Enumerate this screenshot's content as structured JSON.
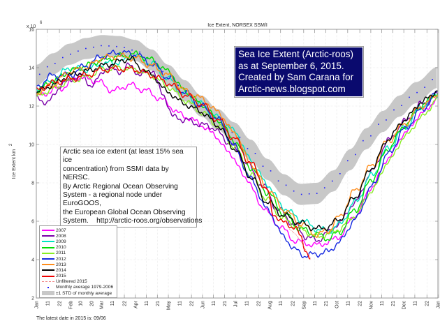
{
  "chart_data": {
    "type": "line",
    "title": "Ice Extent, NORSEX SSM/I",
    "ylabel": "Ice Extent km",
    "ylabel_superscript": "2",
    "y_multiplier": "x 10",
    "y_multiplier_exp": "6",
    "xlabel": "",
    "ylim": [
      2,
      16
    ],
    "xlim": [
      0,
      365
    ],
    "yticks": [
      2,
      4,
      6,
      8,
      10,
      12,
      14,
      16
    ],
    "grid": true,
    "legend_position": "bottom-left",
    "xticks": [
      {
        "day": 0,
        "label": "Jan"
      },
      {
        "day": 10,
        "label": "11"
      },
      {
        "day": 21,
        "label": "22"
      },
      {
        "day": 31,
        "label": "Feb"
      },
      {
        "day": 40,
        "label": "10"
      },
      {
        "day": 50,
        "label": "20"
      },
      {
        "day": 59,
        "label": "Mar"
      },
      {
        "day": 69,
        "label": "11"
      },
      {
        "day": 80,
        "label": "22"
      },
      {
        "day": 90,
        "label": "Apr"
      },
      {
        "day": 100,
        "label": "11"
      },
      {
        "day": 110,
        "label": "21"
      },
      {
        "day": 120,
        "label": "May"
      },
      {
        "day": 130,
        "label": "11"
      },
      {
        "day": 141,
        "label": "22"
      },
      {
        "day": 151,
        "label": "Jun"
      },
      {
        "day": 161,
        "label": "11"
      },
      {
        "day": 171,
        "label": "21"
      },
      {
        "day": 181,
        "label": "Jul"
      },
      {
        "day": 191,
        "label": "11"
      },
      {
        "day": 202,
        "label": "22"
      },
      {
        "day": 212,
        "label": "Aug"
      },
      {
        "day": 222,
        "label": "11"
      },
      {
        "day": 233,
        "label": "22"
      },
      {
        "day": 243,
        "label": "Sep"
      },
      {
        "day": 253,
        "label": "11"
      },
      {
        "day": 263,
        "label": "21"
      },
      {
        "day": 273,
        "label": "Oct"
      },
      {
        "day": 283,
        "label": "11"
      },
      {
        "day": 294,
        "label": "22"
      },
      {
        "day": 304,
        "label": "Nov"
      },
      {
        "day": 314,
        "label": "11"
      },
      {
        "day": 324,
        "label": "21"
      },
      {
        "day": 334,
        "label": "Dec"
      },
      {
        "day": 344,
        "label": "11"
      },
      {
        "day": 355,
        "label": "22"
      },
      {
        "day": 365,
        "label": "Jan"
      }
    ],
    "monthly_average": {
      "name": "Monthly average 1979-2006",
      "color": "#1a1aff",
      "x": [
        0,
        15,
        30,
        45,
        60,
        75,
        90,
        105,
        120,
        135,
        150,
        165,
        180,
        195,
        210,
        225,
        240,
        255,
        270,
        285,
        300,
        315,
        330,
        345,
        365
      ],
      "y": [
        13.6,
        14.2,
        14.7,
        15.0,
        15.15,
        15.1,
        14.9,
        14.4,
        13.6,
        12.8,
        12.0,
        11.3,
        10.6,
        9.7,
        8.7,
        7.9,
        7.4,
        7.45,
        8.1,
        9.2,
        10.3,
        11.2,
        12.0,
        12.7,
        13.5
      ]
    },
    "std_band": {
      "name": "±1 STD of monthly average",
      "color": "#c8c8c8",
      "half_width": 0.55
    },
    "series": [
      {
        "name": "2007",
        "color": "#ff00ff",
        "x": [
          0,
          20,
          40,
          55,
          70,
          85,
          100,
          115,
          130,
          145,
          160,
          175,
          190,
          205,
          220,
          235,
          245,
          255,
          265,
          275,
          290,
          305,
          320,
          335,
          350,
          365
        ],
        "y": [
          12.5,
          12.9,
          13.5,
          13.3,
          12.8,
          13.1,
          12.8,
          12.3,
          11.6,
          11.2,
          10.6,
          9.6,
          8.3,
          6.8,
          5.8,
          5.0,
          4.85,
          4.75,
          4.9,
          5.2,
          6.3,
          7.8,
          9.3,
          10.6,
          11.6,
          12.4
        ]
      },
      {
        "name": "2008",
        "color": "#7a00a8",
        "x": [
          0,
          10,
          25,
          40,
          50,
          65,
          75,
          85,
          95,
          105,
          115,
          125,
          135,
          145,
          160,
          175,
          190,
          205,
          220,
          235,
          245,
          255,
          265,
          275,
          290,
          305,
          320,
          335,
          350,
          365
        ],
        "y": [
          12.4,
          12.2,
          13.2,
          13.6,
          13.1,
          14.0,
          13.8,
          14.1,
          13.6,
          13.9,
          12.6,
          11.4,
          11.3,
          11.1,
          10.9,
          10.1,
          9.1,
          7.9,
          6.6,
          5.8,
          5.2,
          5.0,
          5.4,
          5.9,
          7.0,
          8.6,
          10.2,
          11.2,
          12.1,
          12.6
        ]
      },
      {
        "name": "2009",
        "color": "#00e5c0",
        "x": [
          0,
          15,
          30,
          45,
          60,
          75,
          90,
          105,
          120,
          135,
          150,
          165,
          180,
          195,
          210,
          225,
          240,
          255,
          265,
          275,
          290,
          305,
          320,
          335,
          350,
          365
        ],
        "y": [
          12.9,
          13.3,
          14.0,
          13.9,
          14.2,
          14.3,
          14.6,
          14.2,
          13.4,
          12.6,
          12.1,
          11.4,
          10.7,
          9.2,
          7.9,
          6.7,
          6.1,
          5.6,
          5.5,
          5.8,
          7.0,
          8.4,
          9.8,
          10.9,
          12.0,
          12.6
        ]
      },
      {
        "name": "2010",
        "color": "#00dd00",
        "x": [
          0,
          15,
          30,
          45,
          60,
          75,
          90,
          105,
          120,
          135,
          150,
          165,
          180,
          195,
          210,
          225,
          240,
          255,
          265,
          275,
          290,
          305,
          320,
          335,
          350,
          365
        ],
        "y": [
          12.8,
          13.3,
          13.8,
          14.1,
          14.4,
          14.6,
          14.7,
          14.4,
          13.8,
          12.8,
          12.1,
          11.3,
          10.2,
          8.8,
          7.5,
          6.4,
          5.6,
          5.3,
          5.1,
          5.4,
          6.6,
          8.2,
          9.8,
          11.0,
          12.0,
          12.7
        ]
      },
      {
        "name": "2011",
        "color": "#88ee22",
        "x": [
          0,
          15,
          30,
          45,
          60,
          75,
          90,
          105,
          120,
          135,
          150,
          165,
          180,
          195,
          210,
          225,
          240,
          255,
          265,
          275,
          290,
          305,
          320,
          335,
          350,
          365
        ],
        "y": [
          12.5,
          12.9,
          13.3,
          13.5,
          13.9,
          14.0,
          13.9,
          13.6,
          13.0,
          12.3,
          11.7,
          11.0,
          9.9,
          8.4,
          7.1,
          6.1,
          5.6,
          5.2,
          5.3,
          5.6,
          6.3,
          7.6,
          9.1,
          10.4,
          11.4,
          12.4
        ]
      },
      {
        "name": "2012",
        "color": "#1428e0",
        "x": [
          0,
          15,
          30,
          45,
          60,
          75,
          90,
          105,
          120,
          135,
          150,
          165,
          180,
          195,
          210,
          225,
          235,
          245,
          255,
          265,
          275,
          290,
          305,
          320,
          335,
          350,
          365
        ],
        "y": [
          13.0,
          13.6,
          13.6,
          14.1,
          14.6,
          14.8,
          14.7,
          14.2,
          13.5,
          12.7,
          12.0,
          11.3,
          9.9,
          8.2,
          6.6,
          5.2,
          4.5,
          4.2,
          4.3,
          4.4,
          4.9,
          6.1,
          7.8,
          9.5,
          10.8,
          11.8,
          12.7
        ]
      },
      {
        "name": "2013",
        "color": "#ff8c1a",
        "x": [
          0,
          15,
          30,
          45,
          60,
          75,
          90,
          105,
          120,
          135,
          150,
          165,
          180,
          195,
          210,
          225,
          240,
          255,
          265,
          275,
          290,
          305,
          320,
          335,
          350,
          365
        ],
        "y": [
          12.7,
          13.1,
          13.8,
          14.0,
          14.5,
          14.6,
          14.5,
          14.1,
          13.6,
          12.8,
          12.4,
          11.7,
          10.6,
          9.0,
          7.7,
          6.6,
          5.9,
          5.3,
          5.5,
          6.2,
          7.6,
          8.9,
          10.2,
          11.1,
          12.0,
          12.6
        ]
      },
      {
        "name": "2014",
        "color": "#000000",
        "x": [
          0,
          15,
          30,
          45,
          60,
          75,
          85,
          95,
          105,
          120,
          135,
          150,
          165,
          180,
          195,
          210,
          225,
          240,
          255,
          265,
          275,
          290,
          305,
          320,
          335,
          350,
          365
        ],
        "y": [
          12.7,
          13.1,
          13.6,
          13.8,
          14.1,
          14.3,
          14.5,
          14.0,
          13.6,
          12.7,
          12.1,
          11.7,
          11.0,
          9.8,
          8.3,
          7.0,
          6.3,
          5.9,
          5.6,
          5.7,
          6.1,
          7.3,
          8.8,
          10.3,
          11.3,
          12.2,
          12.8
        ]
      },
      {
        "name": "2015",
        "color": "#ee0000",
        "x": [
          0,
          15,
          30,
          45,
          60,
          75,
          90,
          105,
          120,
          135,
          150,
          165,
          180,
          195,
          210,
          215,
          225,
          235,
          240,
          244,
          249
        ],
        "y": [
          12.8,
          13.2,
          13.4,
          13.6,
          13.9,
          13.95,
          13.9,
          13.6,
          13.2,
          12.6,
          12.1,
          11.3,
          10.3,
          9.0,
          7.6,
          6.4,
          5.9,
          5.7,
          5.2,
          4.6,
          4.1
        ]
      }
    ],
    "unfiltered_2015": {
      "name": "Unfiltered 2015",
      "color": "#f08080",
      "x": [
        230,
        236,
        241,
        245,
        249
      ],
      "y": [
        5.6,
        5.3,
        4.9,
        4.5,
        4.1
      ]
    }
  },
  "annotation": {
    "lines": [
      "Sea Ice Extent (Arctic-roos)",
      "as at September 6, 2015.",
      "Created by Sam Carana for",
      "Arctic-news.blogspot.com"
    ]
  },
  "description": {
    "lines": [
      "Arctic sea ice extent (at least 15% sea ice",
      "concentration) from SSMI data by NERSC.",
      "By Arctic Regional Ocean Observing",
      "System - a regional node under EuroGOOS,",
      "the European Global Ocean Observing",
      "System.    http://arctic-roos.org/observations"
    ]
  },
  "legend": {
    "items": [
      {
        "label": "2007",
        "kind": "line",
        "color": "#ff00ff"
      },
      {
        "label": "2008",
        "kind": "line",
        "color": "#7a00a8"
      },
      {
        "label": "2009",
        "kind": "line",
        "color": "#00e5c0"
      },
      {
        "label": "2010",
        "kind": "line",
        "color": "#00dd00"
      },
      {
        "label": "2011",
        "kind": "line",
        "color": "#88ee22"
      },
      {
        "label": "2012",
        "kind": "line",
        "color": "#1428e0"
      },
      {
        "label": "2013",
        "kind": "line",
        "color": "#ff8c1a"
      },
      {
        "label": "2014",
        "kind": "line",
        "color": "#000000"
      },
      {
        "label": "2015",
        "kind": "line",
        "color": "#ee0000"
      },
      {
        "label": "Unfiltered 2015",
        "kind": "dash",
        "color": "#f08080"
      },
      {
        "label": "Monthly average 1979-2006",
        "kind": "dot",
        "color": "#1a1aff"
      },
      {
        "label": "±1 STD of monthly average",
        "kind": "band",
        "color": "#c8c8c8"
      }
    ]
  },
  "footer": {
    "text": "The latest date in 2015 is: 09/06"
  }
}
